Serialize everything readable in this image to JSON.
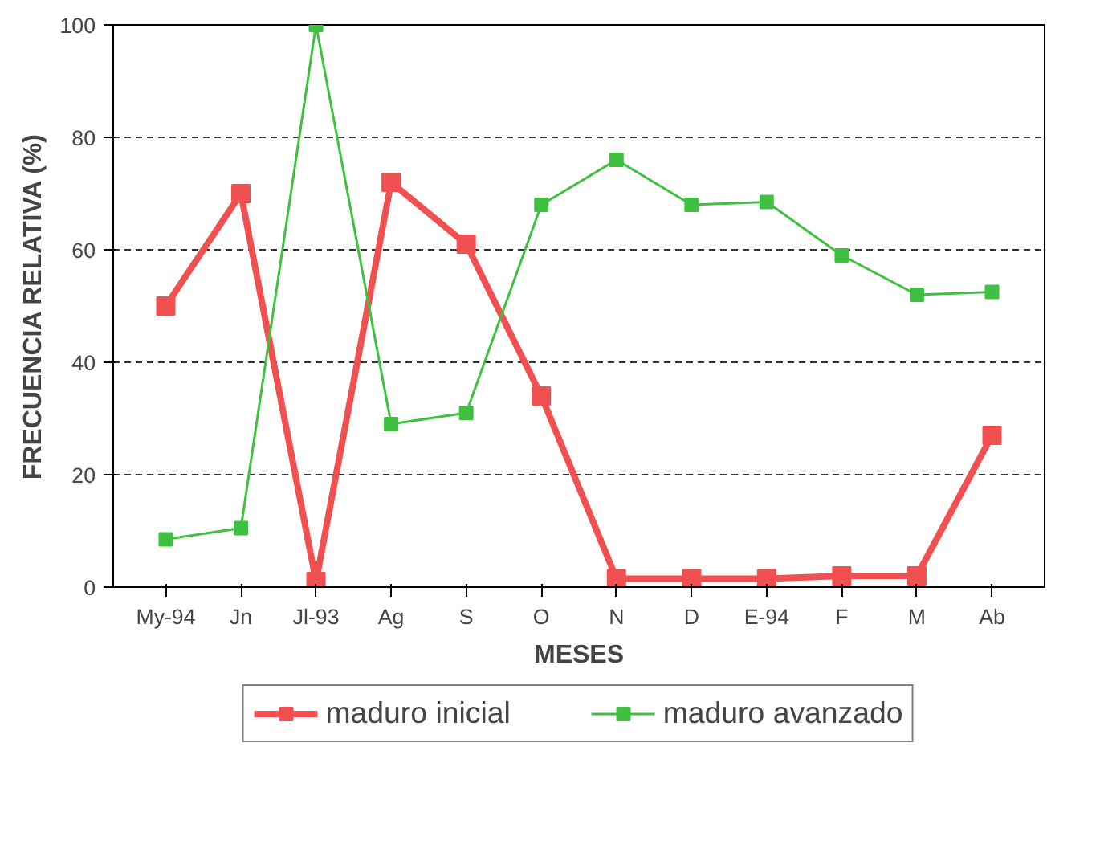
{
  "chart_data": {
    "type": "line",
    "xlabel": "MESES",
    "ylabel": "FRECUENCIA RELATIVA (%)",
    "categories": [
      "My-94",
      "Jn",
      "Jl-93",
      "Ag",
      "S",
      "O",
      "N",
      "D",
      "E-94",
      "F",
      "M",
      "Ab"
    ],
    "series": [
      {
        "name": "maduro inicial",
        "color": "#f05050",
        "values": [
          50,
          70,
          1,
          72,
          61,
          34,
          1.5,
          1.5,
          1.5,
          2,
          2,
          27
        ]
      },
      {
        "name": "maduro avanzado",
        "color": "#40c040",
        "values": [
          8.5,
          10.5,
          100,
          29,
          31,
          68,
          76,
          68,
          68.5,
          59,
          52,
          52.5
        ]
      }
    ],
    "ylim": [
      0,
      100
    ],
    "yticks": [
      0,
      20,
      40,
      60,
      80,
      100
    ],
    "grid": "y",
    "legend": "bottom",
    "marker": "square",
    "line_style": "solid"
  }
}
